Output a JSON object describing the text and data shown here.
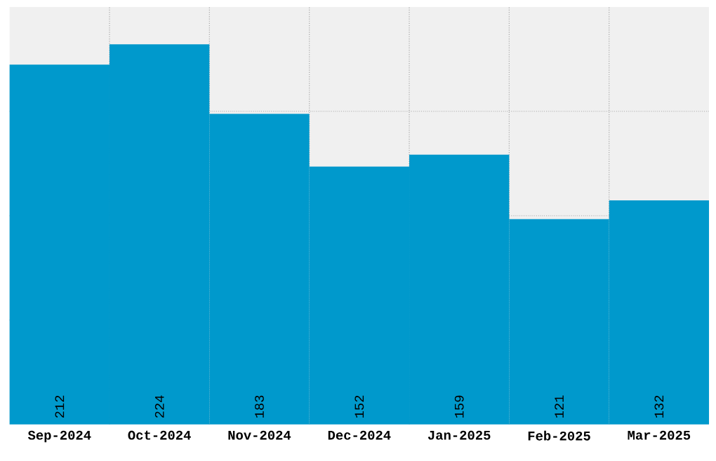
{
  "chart_data": {
    "type": "bar",
    "categories": [
      "Sep-2024",
      "Oct-2024",
      "Nov-2024",
      "Dec-2024",
      "Jan-2025",
      "Feb-2025",
      "Mar-2025"
    ],
    "values": [
      212,
      224,
      183,
      152,
      159,
      121,
      132
    ],
    "color": "#0099cc",
    "ylim": [
      0,
      246
    ],
    "yticks": [
      {
        "value": 61.5,
        "label": null
      },
      {
        "value": 123,
        "label": null
      },
      {
        "value": 184.5,
        "label": null
      }
    ],
    "tick_labels": "x",
    "grid": true,
    "data_labels": true
  }
}
